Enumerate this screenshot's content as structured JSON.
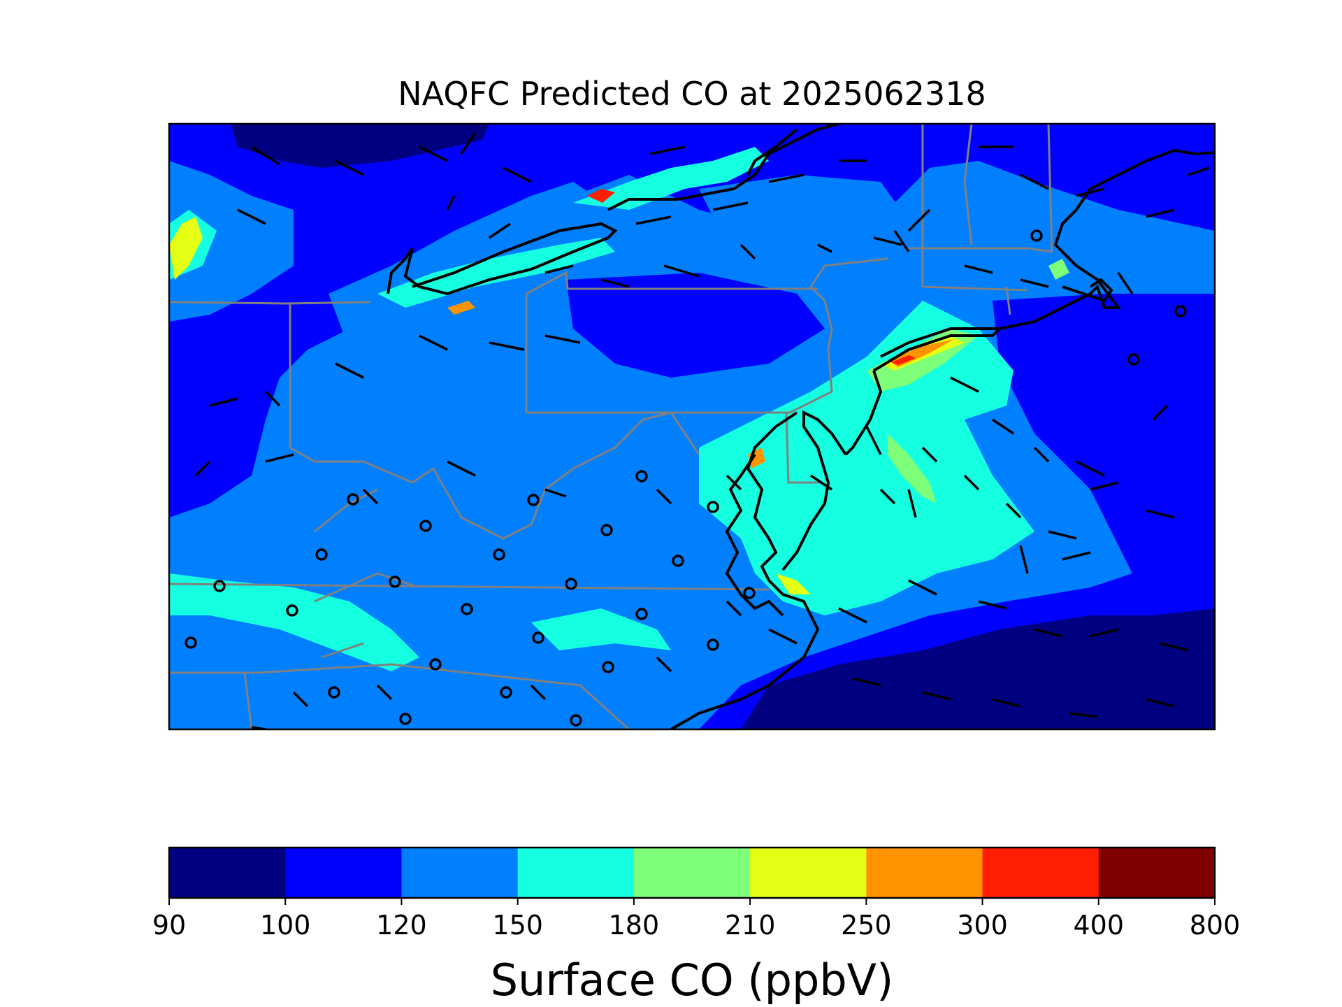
{
  "title": "NAQFC Predicted CO at 2025062318",
  "colorbar": {
    "label": "Surface CO (ppbV)",
    "ticks": [
      "90",
      "100",
      "120",
      "150",
      "180",
      "210",
      "250",
      "300",
      "400",
      "800"
    ],
    "bins": [
      {
        "from": 90,
        "to": 100,
        "color": "#000080"
      },
      {
        "from": 100,
        "to": 120,
        "color": "#0000ff"
      },
      {
        "from": 120,
        "to": 150,
        "color": "#0080ff"
      },
      {
        "from": 150,
        "to": 180,
        "color": "#15ffe1"
      },
      {
        "from": 180,
        "to": 210,
        "color": "#7dff7a"
      },
      {
        "from": 210,
        "to": 250,
        "color": "#e4ff13"
      },
      {
        "from": 250,
        "to": 300,
        "color": "#ff9400"
      },
      {
        "from": 300,
        "to": 400,
        "color": "#ff1e00"
      },
      {
        "from": 400,
        "to": 800,
        "color": "#800000"
      }
    ]
  },
  "map": {
    "variable": "Surface CO",
    "units": "ppbV",
    "overlays": [
      "coastlines",
      "state-borders",
      "wind-barbs",
      "calm-wind-circles"
    ],
    "coastline_color": "#000000",
    "state_border_color": "#808080"
  }
}
